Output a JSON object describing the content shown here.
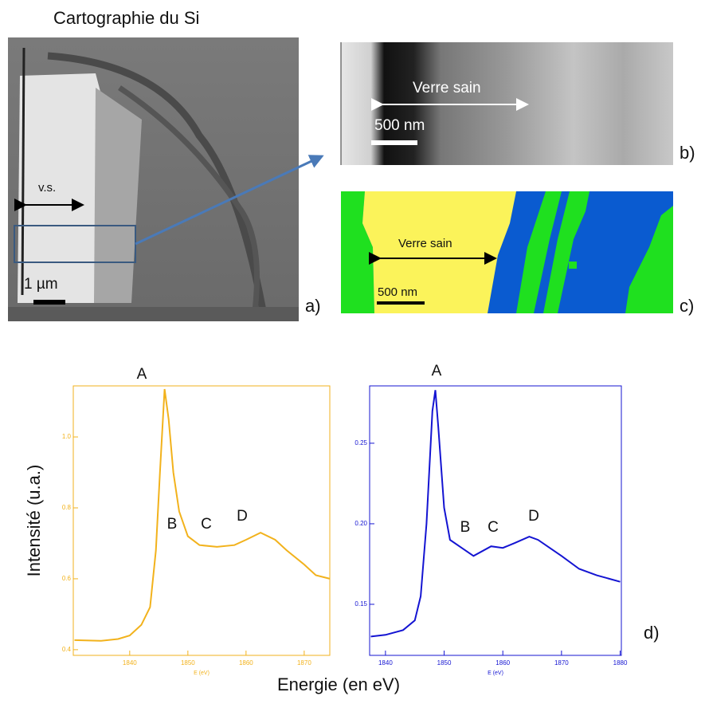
{
  "panels": {
    "title": "Cartographie du Si",
    "a": {
      "label": "a)",
      "width_marker": "v.s.",
      "scale_bar": "1 µm"
    },
    "b": {
      "label": "b)",
      "annotation": "Verre sain",
      "scale_bar": "500 nm"
    },
    "c": {
      "label": "c)",
      "annotation": "Verre sain",
      "scale_bar": "500 nm"
    },
    "d": {
      "label": "d)",
      "y_label": "Intensité (u.a.)",
      "x_label": "Energie (en eV)"
    }
  },
  "chart_data": [
    {
      "type": "line",
      "x_label": "E (eV)",
      "color": "#f2b21c",
      "annotations": [
        "A",
        "B",
        "C",
        "D"
      ],
      "x": [
        1830.5,
        1835,
        1838,
        1840,
        1842,
        1843.5,
        1844.5,
        1845.2,
        1846,
        1846.7,
        1847.5,
        1848.5,
        1850,
        1852,
        1855,
        1858,
        1860,
        1862.5,
        1865,
        1867,
        1870,
        1872,
        1874.4
      ],
      "values": [
        0.427,
        0.425,
        0.43,
        0.44,
        0.47,
        0.52,
        0.68,
        0.9,
        1.135,
        1.05,
        0.9,
        0.79,
        0.72,
        0.695,
        0.69,
        0.695,
        0.71,
        0.73,
        0.71,
        0.68,
        0.64,
        0.61,
        0.6
      ],
      "xlim": [
        1830.3,
        1874.4
      ],
      "ylim": [
        0.384,
        1.144
      ],
      "xticks": [
        1840,
        1850,
        1860,
        1870
      ],
      "yticks": [
        {
          "value": 0.4,
          "label": "0.4"
        },
        {
          "value": 0.6,
          "label": "0.6"
        },
        {
          "value": 0.8,
          "label": "0.8"
        },
        {
          "value": 1.0,
          "label": "1.0"
        }
      ]
    },
    {
      "type": "line",
      "x_label": "E (eV)",
      "color": "#1414d2",
      "annotations": [
        "A",
        "B",
        "C",
        "D"
      ],
      "x": [
        1837.5,
        1840,
        1843,
        1845,
        1846,
        1847,
        1848,
        1848.5,
        1849,
        1850,
        1851,
        1853,
        1855,
        1858,
        1860,
        1862,
        1864.5,
        1866,
        1868,
        1870,
        1873,
        1876,
        1878,
        1880
      ],
      "values": [
        0.13,
        0.131,
        0.134,
        0.14,
        0.155,
        0.2,
        0.27,
        0.283,
        0.26,
        0.21,
        0.19,
        0.185,
        0.18,
        0.186,
        0.185,
        0.188,
        0.192,
        0.19,
        0.185,
        0.18,
        0.172,
        0.168,
        0.166,
        0.164
      ],
      "xlim": [
        1837.3,
        1880.2
      ],
      "ylim": [
        0.1183,
        0.2856
      ],
      "xticks": [
        1840,
        1850,
        1860,
        1870,
        1880
      ],
      "yticks": [
        0.15,
        {
          "value": 0.2,
          "label": "0.20"
        },
        0.25
      ]
    }
  ]
}
